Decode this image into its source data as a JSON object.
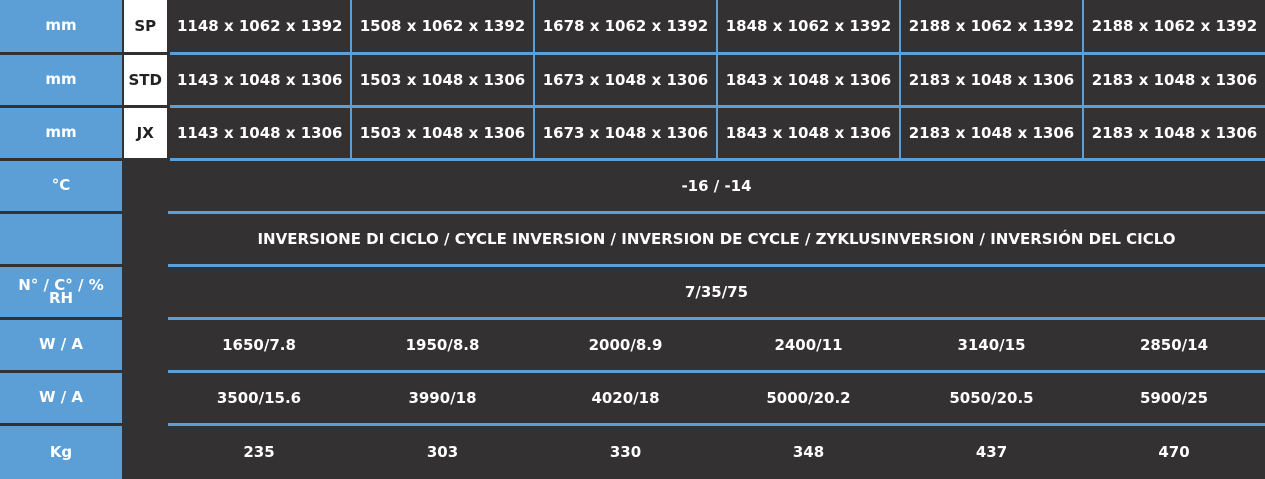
{
  "rows": [
    {
      "unit": "mm",
      "variant": "SP",
      "cells": [
        "1148 x 1062 x 1392",
        "1508 x 1062 x 1392",
        "1678 x 1062 x 1392",
        "1848 x 1062 x 1392",
        "2188 x 1062 x 1392",
        "2188 x 1062 x 1392"
      ]
    },
    {
      "unit": "mm",
      "variant": "STD",
      "cells": [
        "1143 x 1048 x 1306",
        "1503 x 1048 x 1306",
        "1673 x 1048 x 1306",
        "1843 x 1048 x 1306",
        "2183 x 1048 x 1306",
        "2183 x 1048 x 1306"
      ]
    },
    {
      "unit": "mm",
      "variant": "JX",
      "cells": [
        "1143 x 1048 x 1306",
        "1503 x 1048 x 1306",
        "1673 x 1048 x 1306",
        "1843 x 1048 x 1306",
        "2183 x 1048 x 1306",
        "2183 x 1048 x 1306"
      ]
    },
    {
      "unit": "°C",
      "value": "-16 / -14"
    },
    {
      "unit": "",
      "value": "INVERSIONE DI CICLO / CYCLE INVERSION / INVERSION DE CYCLE / ZYKLUSINVERSION / INVERSIÓN DEL CICLO"
    },
    {
      "unit_line1": "N° / C° / %",
      "unit_line2": "RH",
      "value": "7/35/75"
    },
    {
      "unit": "W / A",
      "cells": [
        "1650/7.8",
        "1950/8.8",
        "2000/8.9",
        "2400/11",
        "3140/15",
        "2850/14"
      ]
    },
    {
      "unit": "W / A",
      "cells": [
        "3500/15.6",
        "3990/18",
        "4020/18",
        "5000/20.2",
        "5050/20.5",
        "5900/25"
      ]
    },
    {
      "unit": "Kg",
      "cells": [
        "235",
        "303",
        "330",
        "348",
        "437",
        "470"
      ]
    }
  ]
}
